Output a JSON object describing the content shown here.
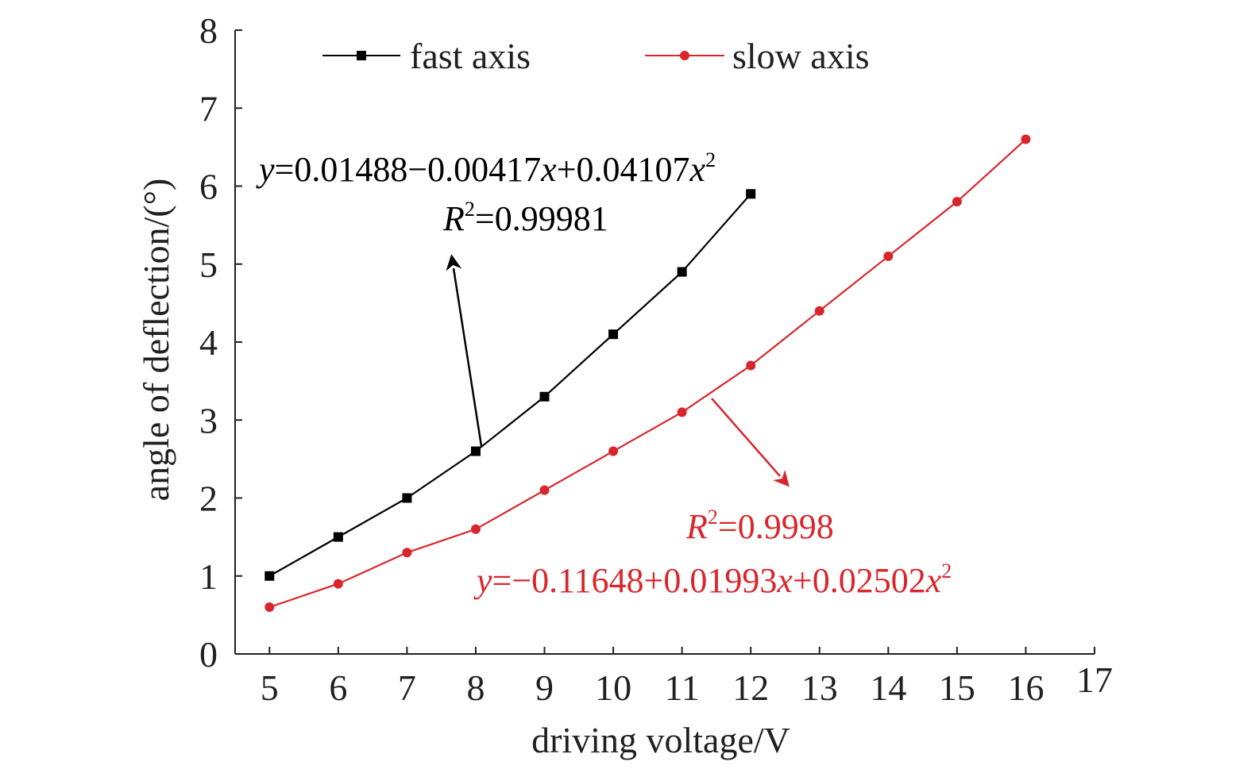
{
  "chart_data": {
    "type": "line",
    "xlabel": "driving voltage/V",
    "ylabel": "angle of deflection/(°)",
    "xlim": [
      4.5,
      17
    ],
    "ylim": [
      0,
      8
    ],
    "xticks": [
      5,
      6,
      7,
      8,
      9,
      10,
      11,
      12,
      13,
      14,
      15,
      16,
      17
    ],
    "yticks": [
      0,
      1,
      2,
      3,
      4,
      5,
      6,
      7,
      8
    ],
    "grid": false,
    "legend_position": "top",
    "series": [
      {
        "name": "fast axis",
        "color": "#000000",
        "marker": "square",
        "x": [
          5,
          6,
          7,
          8,
          9,
          10,
          11,
          12
        ],
        "y": [
          1.0,
          1.5,
          2.0,
          2.6,
          3.3,
          4.1,
          4.9,
          5.9
        ]
      },
      {
        "name": "slow axis",
        "color": "#d9262c",
        "marker": "circle",
        "x": [
          5,
          6,
          7,
          8,
          9,
          10,
          11,
          12,
          13,
          14,
          15,
          16
        ],
        "y": [
          0.6,
          0.9,
          1.3,
          1.6,
          2.1,
          2.6,
          3.1,
          3.7,
          4.4,
          5.1,
          5.8,
          6.6
        ]
      }
    ],
    "annotations": [
      {
        "series": "fast axis",
        "color": "#000000",
        "equation": {
          "y": "y",
          "eq_rest": "=0.01488−0.00417",
          "x1": "x",
          "mid": "+0.04107",
          "x2": "x",
          "sup": "2"
        },
        "r2": {
          "R": "R",
          "sup": "2",
          "value": "=0.99981"
        }
      },
      {
        "series": "slow axis",
        "color": "#d9262c",
        "equation": {
          "y": "y",
          "eq_rest": "=−0.11648+0.01993",
          "x1": "x",
          "mid": "+0.02502",
          "x2": "x",
          "sup": "2"
        },
        "r2": {
          "R": "R",
          "sup": "2",
          "value": "=0.9998"
        }
      }
    ]
  }
}
